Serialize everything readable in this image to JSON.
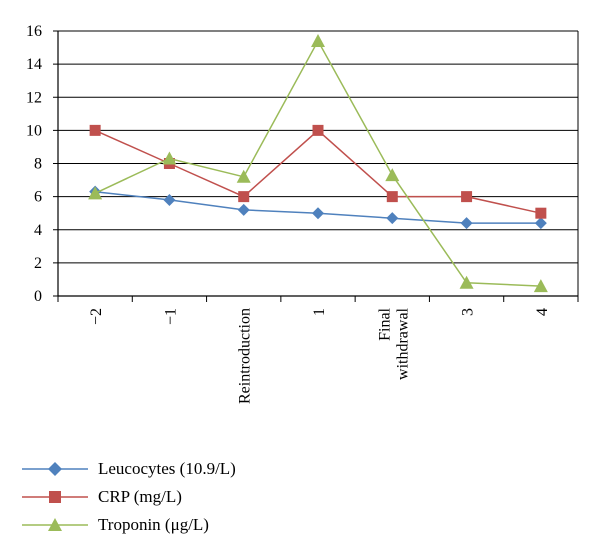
{
  "chart_data": {
    "type": "line",
    "categories": [
      "−2",
      "−1",
      "Reintroduction",
      "1",
      "Final withdrawal",
      "3",
      "4"
    ],
    "category_lines": [
      [
        "−2"
      ],
      [
        "−1"
      ],
      [
        "Reintroduction"
      ],
      [
        "1"
      ],
      [
        "Final",
        "withdrawal"
      ],
      [
        "3"
      ],
      [
        "4"
      ]
    ],
    "ylim": [
      0,
      16
    ],
    "yticks": [
      0,
      2,
      4,
      6,
      8,
      10,
      12,
      14,
      16
    ],
    "grid": true,
    "legend_position": "bottom",
    "series": [
      {
        "name": "Leucocytes (10.9/L)",
        "color": "#4f81bd",
        "marker": "diamond",
        "values": [
          6.3,
          5.8,
          5.2,
          5.0,
          4.7,
          4.4,
          4.4
        ]
      },
      {
        "name": "CRP (mg/L)",
        "color": "#c0504d",
        "marker": "square",
        "values": [
          10,
          8,
          6,
          10,
          6,
          6,
          5
        ]
      },
      {
        "name": "Troponin (μg/L)",
        "color": "#9bbb59",
        "marker": "triangle",
        "values": [
          6.2,
          8.3,
          7.2,
          15.4,
          7.3,
          0.8,
          0.6
        ]
      }
    ]
  }
}
